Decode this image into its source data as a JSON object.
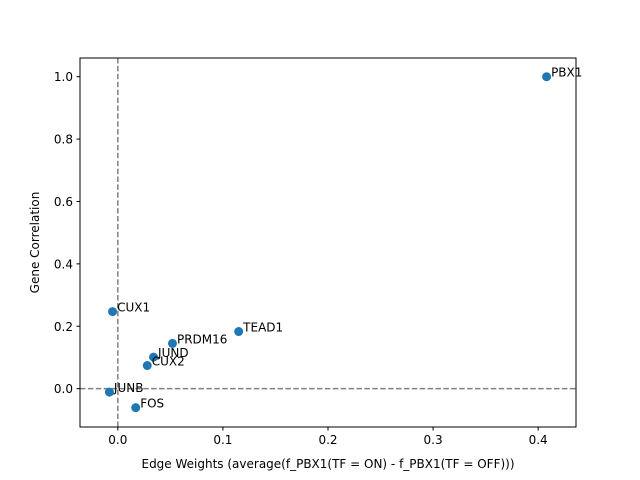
{
  "chart_data": {
    "type": "scatter",
    "xlabel": "Edge Weights (average(f_PBX1(TF = ON) - f_PBX1(TF = OFF)))",
    "ylabel": "Gene Correlation",
    "xlim": [
      -0.036,
      0.436
    ],
    "ylim": [
      -0.123,
      1.06
    ],
    "xticks": [
      0.0,
      0.1,
      0.2,
      0.3,
      0.4
    ],
    "xtick_labels": [
      "0.0",
      "0.1",
      "0.2",
      "0.3",
      "0.4"
    ],
    "yticks": [
      0.0,
      0.2,
      0.4,
      0.6,
      0.8,
      1.0
    ],
    "ytick_labels": [
      "0.0",
      "0.2",
      "0.4",
      "0.6",
      "0.8",
      "1.0"
    ],
    "reference_lines": {
      "x": 0.0,
      "y": 0.0,
      "style": "dashed",
      "color": "#808080"
    },
    "marker_color": "#1f77b4",
    "grid": false,
    "points": [
      {
        "label": "PBX1",
        "x": 0.408,
        "y": 1.0
      },
      {
        "label": "CUX1",
        "x": -0.005,
        "y": 0.247
      },
      {
        "label": "TEAD1",
        "x": 0.115,
        "y": 0.183
      },
      {
        "label": "PRDM16",
        "x": 0.052,
        "y": 0.145
      },
      {
        "label": "JUND",
        "x": 0.034,
        "y": 0.101
      },
      {
        "label": "CUX2",
        "x": 0.028,
        "y": 0.074
      },
      {
        "label": "JUNB",
        "x": -0.008,
        "y": -0.011
      },
      {
        "label": "FOS",
        "x": 0.017,
        "y": -0.061
      }
    ]
  }
}
